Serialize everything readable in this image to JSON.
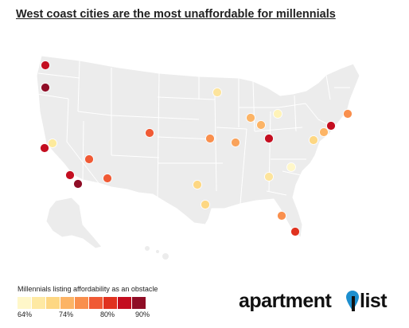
{
  "title": "West coast cities are the most unaffordable for millennials",
  "legend": {
    "title": "Millennials listing affordability as an obstacle",
    "colors": [
      "#fff7c9",
      "#fee9a3",
      "#fdd783",
      "#fcb466",
      "#f98f4d",
      "#f05a35",
      "#e0321f",
      "#c40e20",
      "#8f0d26"
    ],
    "ticks": [
      "64%",
      "74%",
      "80%",
      "90%"
    ]
  },
  "logo": {
    "part1": "apartment",
    "part2": "list",
    "pin_color": "#1d8fcf"
  },
  "map_colors": {
    "land": "#ececec",
    "border": "#ffffff"
  },
  "cities": [
    {
      "id": "seattle",
      "color": "#c40e20"
    },
    {
      "id": "portland",
      "color": "#8f0d26"
    },
    {
      "id": "sacramento",
      "color": "#fdea9c"
    },
    {
      "id": "san-francisco",
      "color": "#c40e20"
    },
    {
      "id": "los-angeles",
      "color": "#c40e20"
    },
    {
      "id": "san-diego",
      "color": "#8f0d26"
    },
    {
      "id": "las-vegas",
      "color": "#f05a35"
    },
    {
      "id": "phoenix",
      "color": "#f05a35"
    },
    {
      "id": "denver",
      "color": "#f05a35"
    },
    {
      "id": "minneapolis",
      "color": "#fde49c"
    },
    {
      "id": "kansas-city",
      "color": "#f98f4d"
    },
    {
      "id": "st-louis",
      "color": "#f9a25a"
    },
    {
      "id": "chicago",
      "color": "#fcb466"
    },
    {
      "id": "detroit",
      "color": "#fff3b8"
    },
    {
      "id": "indianapolis",
      "color": "#fcb466"
    },
    {
      "id": "columbus",
      "color": "#c40e20"
    },
    {
      "id": "pittsburgh",
      "color": "#fdd783"
    },
    {
      "id": "philadelphia",
      "color": "#fcb466"
    },
    {
      "id": "new-york",
      "color": "#f98f4d"
    },
    {
      "id": "newark",
      "color": "#c40e20"
    },
    {
      "id": "boston",
      "color": "#f98f4d"
    },
    {
      "id": "dallas",
      "color": "#fdd783"
    },
    {
      "id": "houston",
      "color": "#fdd783"
    },
    {
      "id": "atlanta",
      "color": "#fde49c"
    },
    {
      "id": "charlotte",
      "color": "#fff7c9"
    },
    {
      "id": "orlando",
      "color": "#f98f4d"
    },
    {
      "id": "miami",
      "color": "#e0321f"
    }
  ]
}
